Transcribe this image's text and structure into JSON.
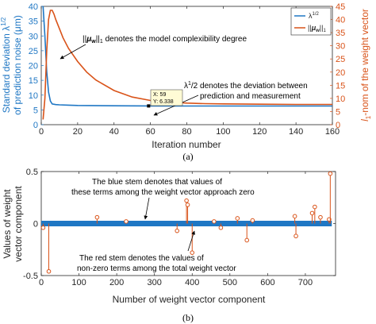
{
  "chart_data": [
    {
      "type": "line",
      "panel_label": "(a)",
      "xlabel": "Iteration number",
      "ylabel_left": "Standard deviation λ^1/2 of prediction noise (μm)",
      "ylabel_right": "l1-norm of the weight vector",
      "xlim": [
        0,
        160
      ],
      "ylim_left": [
        0,
        40
      ],
      "ylim_right": [
        0,
        45
      ],
      "x_ticks": [
        0,
        20,
        40,
        60,
        80,
        100,
        120,
        140,
        160
      ],
      "y_ticks_left": [
        0,
        5,
        10,
        15,
        20,
        25,
        30,
        35,
        40
      ],
      "y_ticks_right": [
        0,
        5,
        10,
        15,
        20,
        25,
        30,
        35,
        40,
        45
      ],
      "legend_position": "top-right",
      "series": [
        {
          "name": "λ^1/2",
          "axis": "left",
          "color": "#1f77c4",
          "x": [
            1,
            2,
            3,
            4,
            5,
            6,
            8,
            10,
            15,
            20,
            40,
            60,
            80,
            100,
            120,
            140,
            160
          ],
          "y": [
            40,
            30,
            18,
            11,
            8,
            7,
            6.8,
            6.7,
            6.6,
            6.5,
            6.4,
            6.338,
            6.3,
            6.3,
            6.3,
            6.3,
            6.3
          ]
        },
        {
          "name": "||μw||1",
          "axis": "right",
          "color": "#d95319",
          "x": [
            1,
            2,
            3,
            4,
            5,
            6,
            7,
            8,
            10,
            12,
            15,
            20,
            25,
            30,
            40,
            50,
            60,
            70,
            80,
            90,
            100,
            120,
            140,
            160
          ],
          "y": [
            2,
            10,
            28,
            40,
            43.5,
            43.5,
            42,
            40,
            36.5,
            33,
            29,
            24,
            20,
            17,
            13,
            10.5,
            9.2,
            8.6,
            8.2,
            8.0,
            7.9,
            7.8,
            7.7,
            7.7
          ]
        }
      ],
      "annotations": [
        "||μw||1 denotes the model complexibility degree",
        "λ1/2 denotes the deviation between prediction and measurement"
      ],
      "datatip": {
        "x_text": "X: 59",
        "y_text": "Y: 6.338",
        "x": 59,
        "y": 6.338
      }
    },
    {
      "type": "stem",
      "panel_label": "(b)",
      "xlabel": "Number of weight vector component",
      "ylabel": "Values of weight vector component",
      "xlim": [
        0,
        780
      ],
      "ylim": [
        -0.5,
        0.5
      ],
      "x_ticks": [
        0,
        100,
        200,
        300,
        400,
        500,
        600,
        700
      ],
      "y_ticks": [
        -0.5,
        0,
        0.5
      ],
      "blue_range": [
        0,
        770
      ],
      "blue_color": "#1f77c4",
      "red_color": "#d95319",
      "red_stems": [
        {
          "x": 5,
          "y": -0.04
        },
        {
          "x": 20,
          "y": -0.46
        },
        {
          "x": 148,
          "y": 0.06
        },
        {
          "x": 225,
          "y": 0.02
        },
        {
          "x": 360,
          "y": -0.07
        },
        {
          "x": 385,
          "y": 0.22
        },
        {
          "x": 388,
          "y": 0.18
        },
        {
          "x": 400,
          "y": -0.28
        },
        {
          "x": 458,
          "y": 0.02
        },
        {
          "x": 476,
          "y": -0.04
        },
        {
          "x": 520,
          "y": 0.05
        },
        {
          "x": 545,
          "y": -0.16
        },
        {
          "x": 560,
          "y": 0.03
        },
        {
          "x": 672,
          "y": 0.07
        },
        {
          "x": 675,
          "y": -0.12
        },
        {
          "x": 718,
          "y": 0.1
        },
        {
          "x": 725,
          "y": 0.16
        },
        {
          "x": 740,
          "y": 0.06
        },
        {
          "x": 763,
          "y": 0.04
        },
        {
          "x": 766,
          "y": 0.48
        }
      ],
      "annotations": [
        "The blue stem denotes that values of these terms among the weight vector approach zero",
        "The red stem denotes the values of non-zero terms among the total weight vector"
      ]
    }
  ],
  "text": {
    "a_ylabel_left_1": "Standard deviation λ",
    "a_ylabel_left_sup": "1/2",
    "a_ylabel_left_2": "of prediction noise (μm)",
    "a_ylabel_right_pre": "l",
    "a_ylabel_right_sub": "1",
    "a_ylabel_right_post": "-nom of the weight vector",
    "a_xlabel": "Iteration number",
    "a_legend_1_pre": "λ",
    "a_legend_1_sup": "1/2",
    "a_legend_2_pre": "||",
    "a_legend_2_mu": "μ",
    "a_legend_2_w": "w",
    "a_legend_2_post": "||",
    "a_legend_2_sub": "1",
    "a_ann1_pre": "||",
    "a_ann1_mu": "μ",
    "a_ann1_w": "w",
    "a_ann1_post": "||",
    "a_ann1_sub": "1",
    "a_ann1_text": " denotes the model complexibility degree",
    "a_ann2_pre": "λ",
    "a_ann2_sup": "1",
    "a_ann2_line1": "/2 denotes the deviation between",
    "a_ann2_line2": "prediction and measurement",
    "a_caption": "(a)",
    "b_ylabel_1": "Values of weight",
    "b_ylabel_2": "vector component",
    "b_xlabel": "Number of weight vector component",
    "b_ann1_line1": "The blue stem denotes that values of",
    "b_ann1_line2": "these terms among the weight vector approach zero",
    "b_ann2_line1": "The red stem denotes the values of",
    "b_ann2_line2": "non-zero terms among the total weight vector",
    "b_caption": "(b)"
  }
}
